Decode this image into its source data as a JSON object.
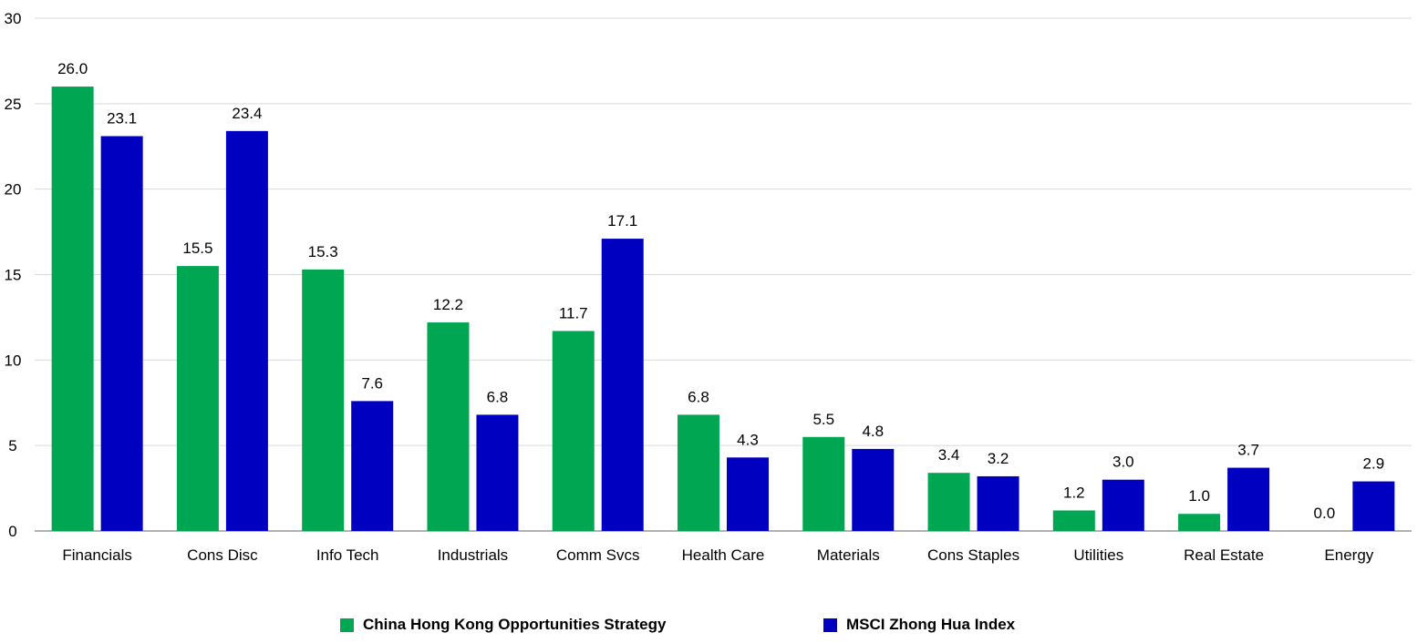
{
  "chart_data": {
    "type": "bar",
    "categories": [
      "Financials",
      "Cons Disc",
      "Info Tech",
      "Industrials",
      "Comm Svcs",
      "Health Care",
      "Materials",
      "Cons Staples",
      "Utilities",
      "Real Estate",
      "Energy"
    ],
    "series": [
      {
        "name": "China Hong Kong Opportunities Strategy",
        "color": "#00A651",
        "values": [
          26.0,
          15.5,
          15.3,
          12.2,
          11.7,
          6.8,
          5.5,
          3.4,
          1.2,
          1.0,
          0.0
        ],
        "labels": [
          "26.0",
          "15.5",
          "15.3",
          "12.2",
          "11.7",
          "6.8",
          "5.5",
          "3.4",
          "1.2",
          "1.0",
          "0.0"
        ]
      },
      {
        "name": "MSCI Zhong Hua Index",
        "color": "#0000C0",
        "values": [
          23.1,
          23.4,
          7.6,
          6.8,
          17.1,
          4.3,
          4.8,
          3.2,
          3.0,
          3.7,
          2.9
        ],
        "labels": [
          "23.1",
          "23.4",
          "7.6",
          "6.8",
          "17.1",
          "4.3",
          "4.8",
          "3.2",
          "3.0",
          "3.7",
          "2.9"
        ]
      }
    ],
    "yticks": [
      "0",
      "5",
      "10",
      "15",
      "20",
      "25",
      "30"
    ],
    "ylim": [
      0,
      30
    ],
    "grid": true,
    "legend": "bottom-center"
  }
}
